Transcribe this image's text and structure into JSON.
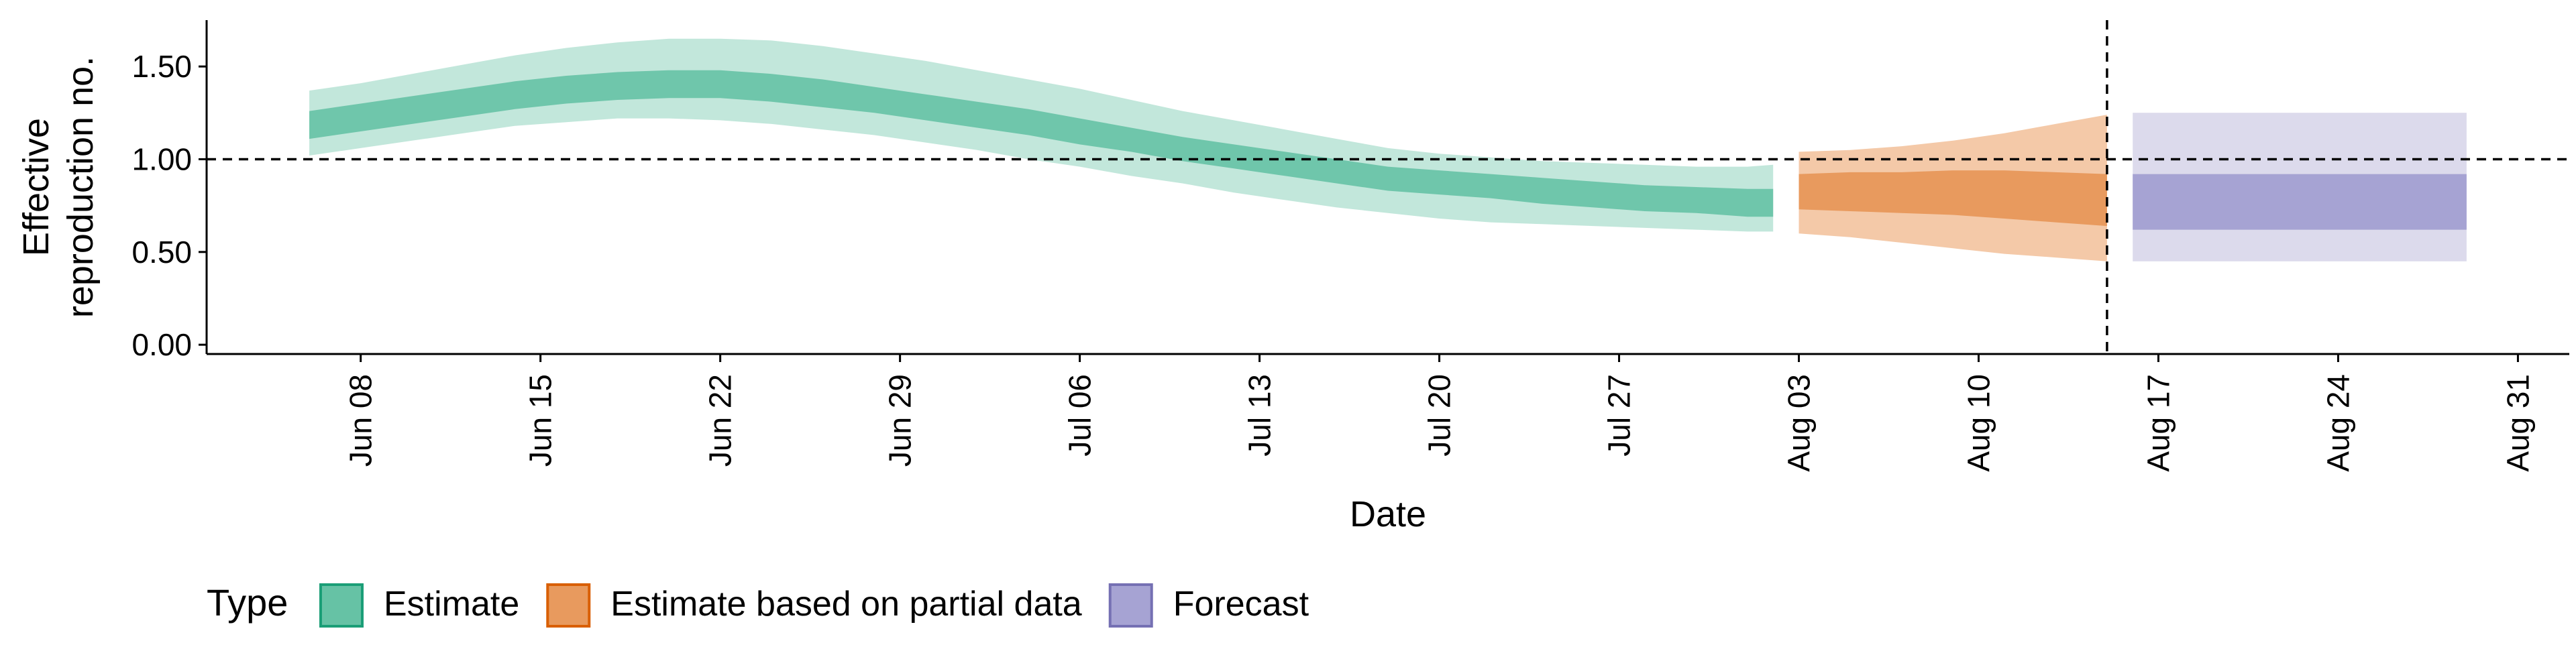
{
  "chart_data": {
    "type": "area",
    "title": "",
    "xlabel": "Date",
    "ylabel_lines": [
      "Effective",
      "reproduction no."
    ],
    "x_start": "2020-06-02",
    "x_range": [
      "2020-06-02",
      "2020-09-02"
    ],
    "ylim": [
      -0.05,
      1.75
    ],
    "x_ticks": [
      {
        "date": "2020-06-08",
        "label": "Jun 08"
      },
      {
        "date": "2020-06-15",
        "label": "Jun 15"
      },
      {
        "date": "2020-06-22",
        "label": "Jun 22"
      },
      {
        "date": "2020-06-29",
        "label": "Jun 29"
      },
      {
        "date": "2020-07-06",
        "label": "Jul 06"
      },
      {
        "date": "2020-07-13",
        "label": "Jul 13"
      },
      {
        "date": "2020-07-20",
        "label": "Jul 20"
      },
      {
        "date": "2020-07-27",
        "label": "Jul 27"
      },
      {
        "date": "2020-08-03",
        "label": "Aug 03"
      },
      {
        "date": "2020-08-10",
        "label": "Aug 10"
      },
      {
        "date": "2020-08-17",
        "label": "Aug 17"
      },
      {
        "date": "2020-08-24",
        "label": "Aug 24"
      },
      {
        "date": "2020-08-31",
        "label": "Aug 31"
      }
    ],
    "y_ticks": [
      {
        "value": 0.0,
        "label": "0.00"
      },
      {
        "value": 0.5,
        "label": "0.50"
      },
      {
        "value": 1.0,
        "label": "1.00"
      },
      {
        "value": 1.5,
        "label": "1.50"
      }
    ],
    "reference_hline": 1.0,
    "reference_vline_date": "2020-08-15",
    "grid": false,
    "legend": {
      "position": "bottom-left",
      "title": "Type",
      "entries": [
        {
          "label": "Estimate",
          "fill": "#66c2a5",
          "stroke": "#1b9e77"
        },
        {
          "label": "Estimate based on partial data",
          "fill": "#e89a5e",
          "stroke": "#d95f02"
        },
        {
          "label": "Forecast",
          "fill": "#a6a3d3",
          "stroke": "#7570b3"
        }
      ]
    },
    "series": [
      {
        "name": "Estimate",
        "inner_color": "#66c2a5",
        "outer_color": "#66c2a5",
        "x": [
          "2020-06-06",
          "2020-06-08",
          "2020-06-10",
          "2020-06-12",
          "2020-06-14",
          "2020-06-16",
          "2020-06-18",
          "2020-06-20",
          "2020-06-22",
          "2020-06-24",
          "2020-06-26",
          "2020-06-28",
          "2020-06-30",
          "2020-07-02",
          "2020-07-04",
          "2020-07-06",
          "2020-07-08",
          "2020-07-10",
          "2020-07-12",
          "2020-07-14",
          "2020-07-16",
          "2020-07-18",
          "2020-07-20",
          "2020-07-22",
          "2020-07-24",
          "2020-07-26",
          "2020-07-28",
          "2020-07-30",
          "2020-08-01",
          "2020-08-02"
        ],
        "upper_outer": [
          1.37,
          1.41,
          1.46,
          1.51,
          1.56,
          1.6,
          1.63,
          1.65,
          1.65,
          1.64,
          1.61,
          1.57,
          1.53,
          1.48,
          1.43,
          1.38,
          1.32,
          1.26,
          1.21,
          1.16,
          1.11,
          1.06,
          1.03,
          1.01,
          0.99,
          0.98,
          0.97,
          0.96,
          0.96,
          0.97
        ],
        "upper_inner": [
          1.26,
          1.3,
          1.34,
          1.38,
          1.42,
          1.45,
          1.47,
          1.48,
          1.48,
          1.46,
          1.43,
          1.39,
          1.35,
          1.31,
          1.27,
          1.22,
          1.17,
          1.12,
          1.08,
          1.04,
          1.0,
          0.96,
          0.94,
          0.92,
          0.9,
          0.88,
          0.86,
          0.85,
          0.84,
          0.84
        ],
        "lower_inner": [
          1.11,
          1.15,
          1.19,
          1.23,
          1.27,
          1.3,
          1.32,
          1.33,
          1.33,
          1.31,
          1.28,
          1.25,
          1.21,
          1.17,
          1.13,
          1.08,
          1.04,
          0.99,
          0.95,
          0.91,
          0.87,
          0.83,
          0.81,
          0.79,
          0.76,
          0.74,
          0.72,
          0.71,
          0.69,
          0.69
        ],
        "lower_outer": [
          1.02,
          1.06,
          1.1,
          1.14,
          1.18,
          1.2,
          1.22,
          1.22,
          1.21,
          1.19,
          1.16,
          1.13,
          1.09,
          1.05,
          1.0,
          0.96,
          0.91,
          0.87,
          0.82,
          0.78,
          0.74,
          0.71,
          0.68,
          0.66,
          0.65,
          0.64,
          0.63,
          0.62,
          0.61,
          0.61
        ]
      },
      {
        "name": "Estimate based on partial data",
        "inner_color": "#e89a5e",
        "outer_color": "#f4c9a8",
        "x": [
          "2020-08-03",
          "2020-08-05",
          "2020-08-07",
          "2020-08-09",
          "2020-08-11",
          "2020-08-13",
          "2020-08-15"
        ],
        "upper_outer": [
          1.04,
          1.05,
          1.07,
          1.1,
          1.14,
          1.19,
          1.24
        ],
        "upper_inner": [
          0.92,
          0.93,
          0.93,
          0.94,
          0.94,
          0.93,
          0.92
        ],
        "lower_inner": [
          0.73,
          0.72,
          0.71,
          0.7,
          0.68,
          0.66,
          0.64
        ],
        "lower_outer": [
          0.6,
          0.58,
          0.55,
          0.52,
          0.49,
          0.47,
          0.45
        ]
      },
      {
        "name": "Forecast",
        "inner_color": "#a6a3d3",
        "outer_color": "#dcdaec",
        "x": [
          "2020-08-16",
          "2020-08-29"
        ],
        "upper_outer": [
          1.25,
          1.25
        ],
        "upper_inner": [
          0.92,
          0.92
        ],
        "lower_inner": [
          0.62,
          0.62
        ],
        "lower_outer": [
          0.45,
          0.45
        ]
      }
    ]
  }
}
